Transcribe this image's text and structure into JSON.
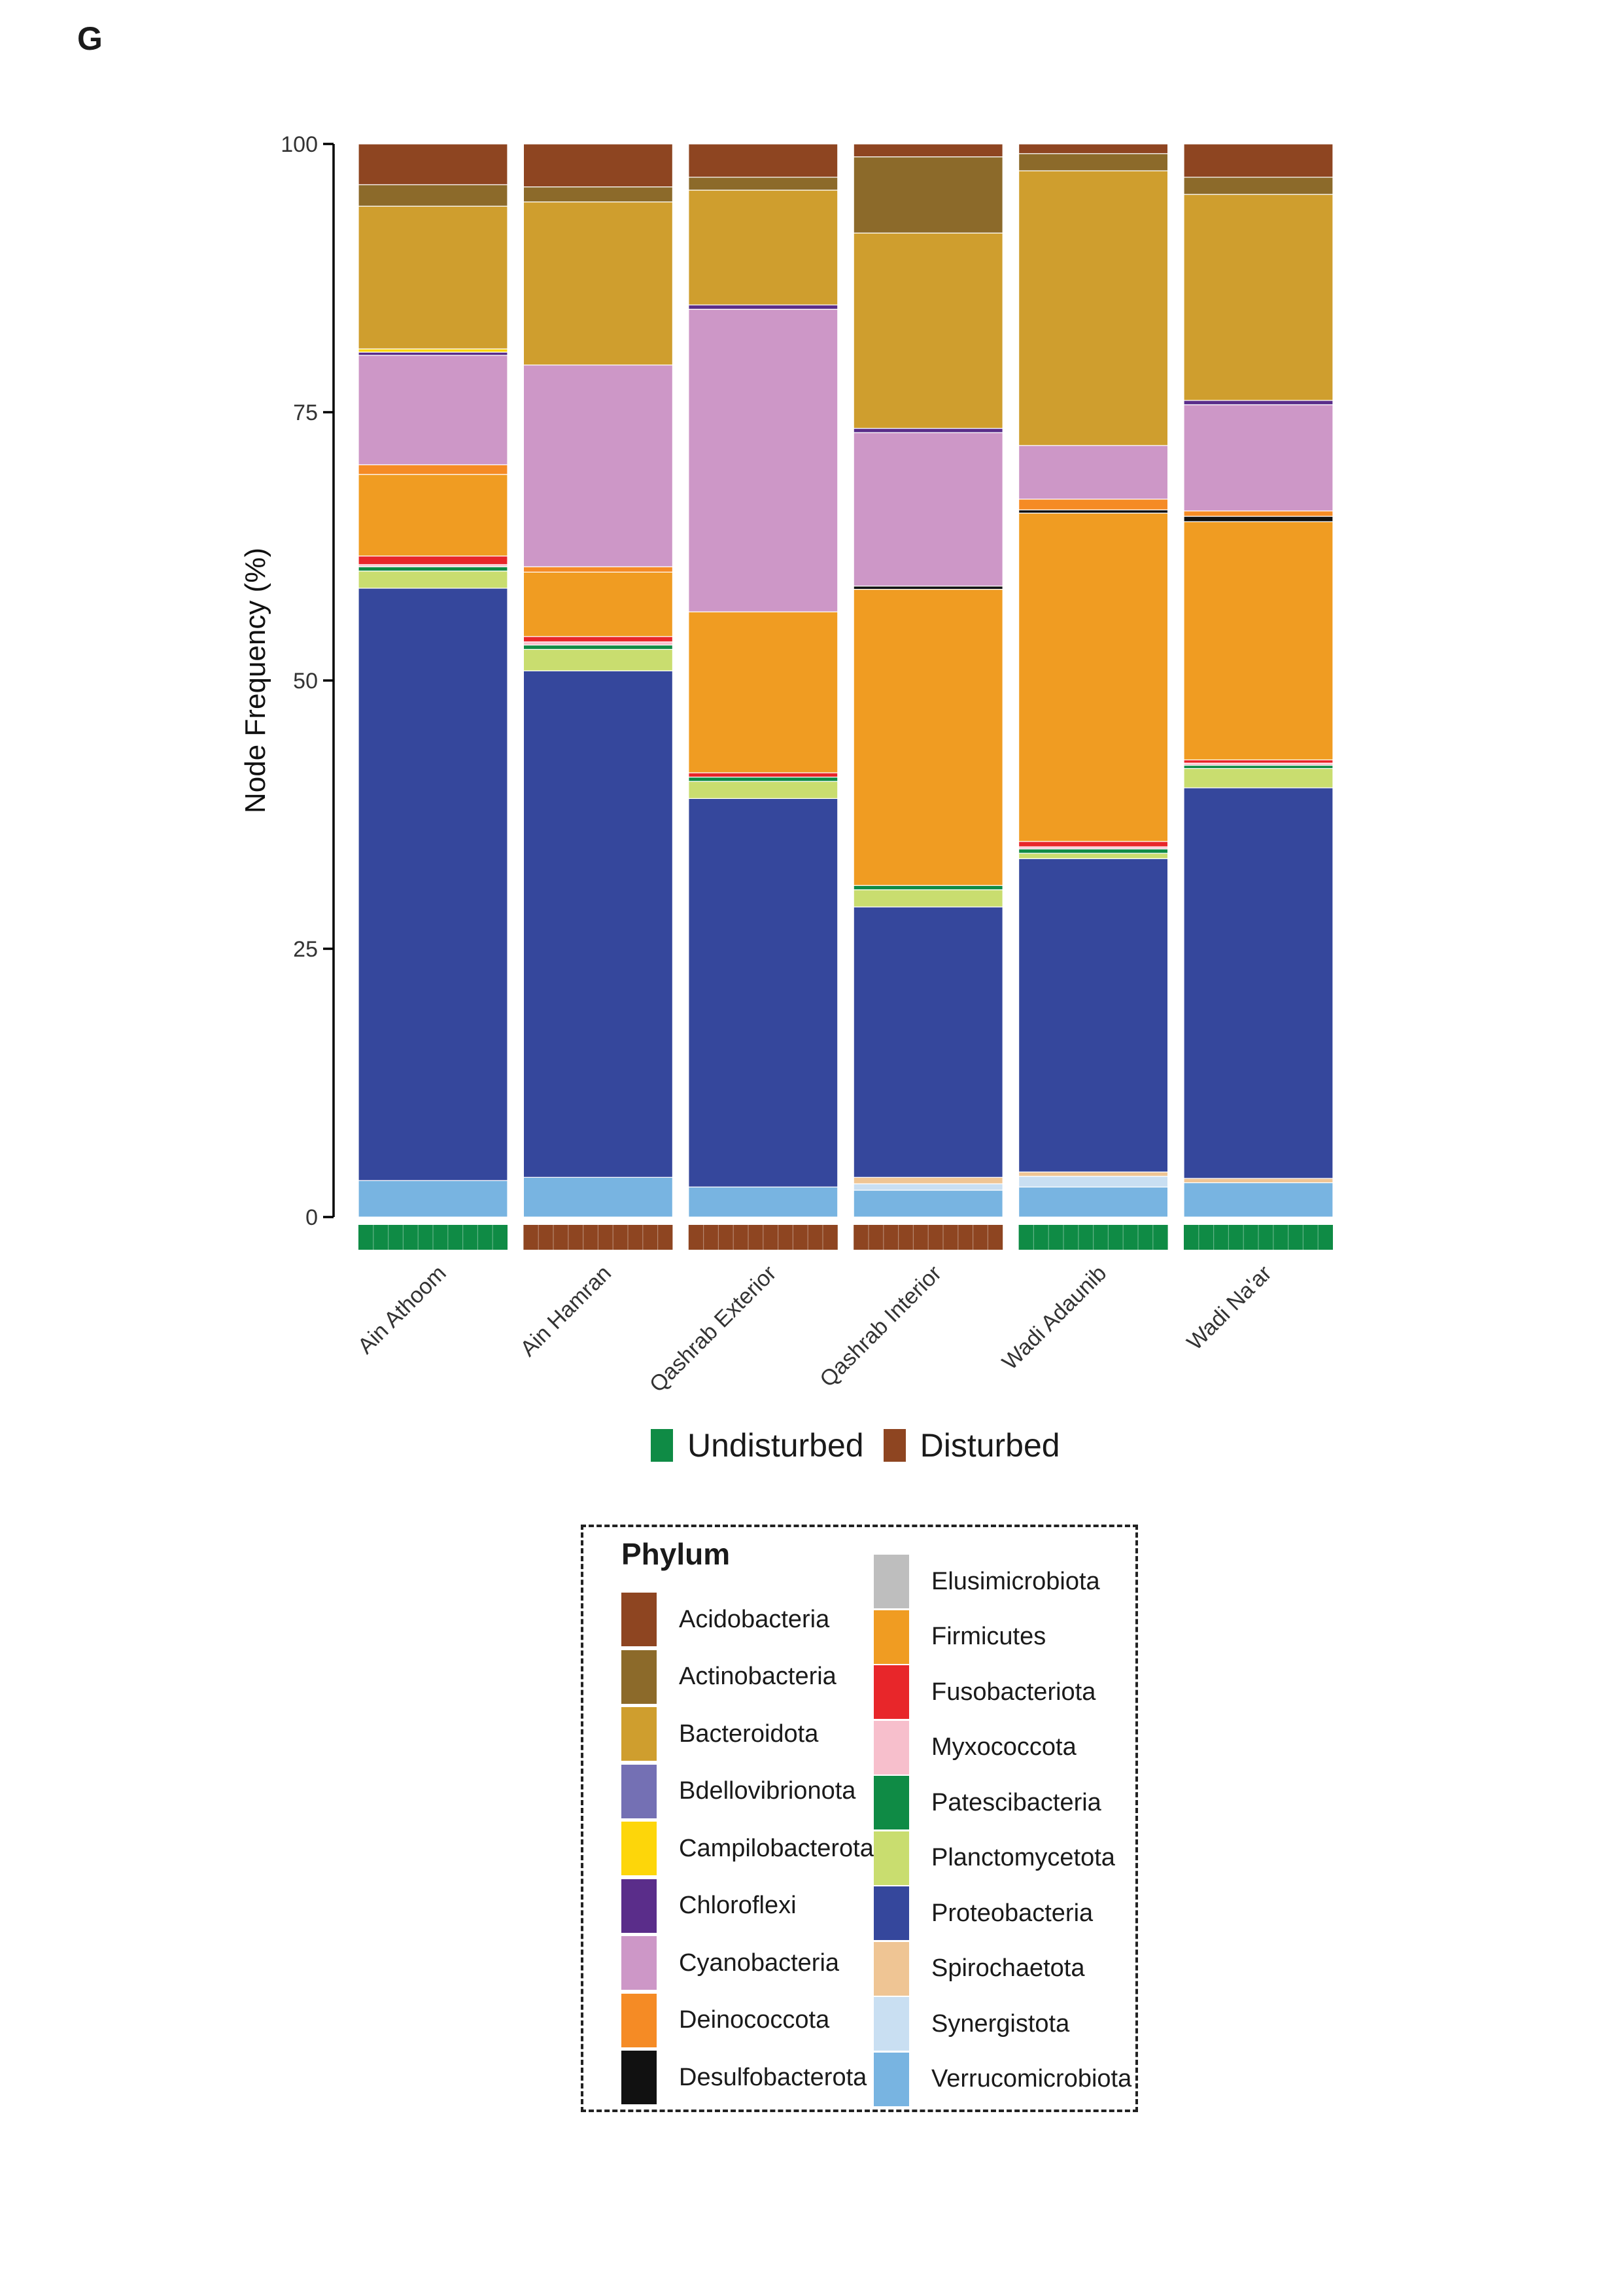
{
  "panel_label": "G",
  "chart_data": {
    "type": "bar",
    "stacked": true,
    "ylabel": "Node Frequency (%)",
    "xlabel": "",
    "ylim": [
      0,
      100
    ],
    "yticks": [
      0,
      25,
      50,
      75,
      100
    ],
    "grid": false,
    "categories": [
      "Ain Athoom",
      "Ain Hamran",
      "Qashrab Exterior",
      "Qashrab Interior",
      "Wadi Adaunib",
      "Wadi Na'ar"
    ],
    "disturbance": [
      "Undisturbed",
      "Disturbed",
      "Disturbed",
      "Disturbed",
      "Undisturbed",
      "Undisturbed"
    ],
    "series": [
      {
        "name": "Verrucomicrobiota",
        "color": "#78b4e1",
        "values": [
          3.4,
          3.7,
          2.8,
          2.5,
          2.8,
          3.2
        ]
      },
      {
        "name": "Synergistota",
        "color": "#c9dff2",
        "values": [
          0,
          0,
          0,
          0.6,
          1.0,
          0
        ]
      },
      {
        "name": "Spirochaetota",
        "color": "#efc594",
        "values": [
          0,
          0,
          0,
          0.6,
          0.4,
          0.4
        ]
      },
      {
        "name": "Proteobacteria",
        "color": "#35479c",
        "values": [
          55.2,
          47.2,
          36.2,
          25.2,
          29.2,
          36.4
        ]
      },
      {
        "name": "Planctomycetota",
        "color": "#c9dd6f",
        "values": [
          1.6,
          2.0,
          1.6,
          1.6,
          0.5,
          1.8
        ]
      },
      {
        "name": "Patescibacteria",
        "color": "#0f8b45",
        "values": [
          0.4,
          0.4,
          0.4,
          0.4,
          0.4,
          0.3
        ]
      },
      {
        "name": "Myxococcota",
        "color": "#f7bfcc",
        "values": [
          0.2,
          0.3,
          0,
          0,
          0.2,
          0.2
        ]
      },
      {
        "name": "Fusobacteriota",
        "color": "#e8262a",
        "values": [
          0.8,
          0.5,
          0.4,
          0,
          0.5,
          0.3
        ]
      },
      {
        "name": "Firmicutes",
        "color": "#f09c22",
        "values": [
          7.6,
          6.0,
          15.0,
          27.6,
          30.6,
          22.2
        ]
      },
      {
        "name": "Elusimicrobiota",
        "color": "#bebebe",
        "values": [
          0,
          0,
          0,
          0,
          0,
          0
        ]
      },
      {
        "name": "Desulfobacterota",
        "color": "#111111",
        "values": [
          0,
          0,
          0,
          0.3,
          0.3,
          0.5
        ]
      },
      {
        "name": "Deinococcota",
        "color": "#f58b25",
        "values": [
          0.9,
          0.5,
          0,
          0,
          1.0,
          0.5
        ]
      },
      {
        "name": "Cyanobacteria",
        "color": "#cd97c7",
        "values": [
          10.2,
          18.8,
          28.2,
          14.3,
          5.0,
          9.9
        ]
      },
      {
        "name": "Chloroflexi",
        "color": "#5a2d8a",
        "values": [
          0.3,
          0,
          0.4,
          0.4,
          0,
          0.4
        ]
      },
      {
        "name": "Campilobacterota",
        "color": "#fdd60a",
        "values": [
          0.3,
          0,
          0,
          0,
          0,
          0
        ]
      },
      {
        "name": "Bdellovibrionota",
        "color": "#7470b4",
        "values": [
          0,
          0,
          0,
          0,
          0,
          0
        ]
      },
      {
        "name": "Bacteroidota",
        "color": "#cf9e2e",
        "values": [
          13.3,
          15.2,
          10.7,
          18.2,
          25.6,
          19.2
        ]
      },
      {
        "name": "Actinobacteria",
        "color": "#8c6a2a",
        "values": [
          2.0,
          1.4,
          1.2,
          7.1,
          1.6,
          1.6
        ]
      },
      {
        "name": "Acidobacteria",
        "color": "#8e4521",
        "values": [
          3.8,
          4.0,
          3.1,
          1.2,
          0.9,
          3.1
        ]
      }
    ]
  },
  "disturbance_legend": [
    {
      "label": "Undisturbed",
      "color": "#0f8b45"
    },
    {
      "label": "Disturbed",
      "color": "#8e4521"
    }
  ],
  "phylum_legend": {
    "title": "Phylum",
    "left": [
      "Acidobacteria",
      "Actinobacteria",
      "Bacteroidota",
      "Bdellovibrionota",
      "Campilobacterota",
      "Chloroflexi",
      "Cyanobacteria",
      "Deinococcota",
      "Desulfobacterota"
    ],
    "right": [
      "Elusimicrobiota",
      "Firmicutes",
      "Fusobacteriota",
      "Myxococcota",
      "Patescibacteria",
      "Planctomycetota",
      "Proteobacteria",
      "Spirochaetota",
      "Synergistota",
      "Verrucomicrobiota"
    ]
  }
}
